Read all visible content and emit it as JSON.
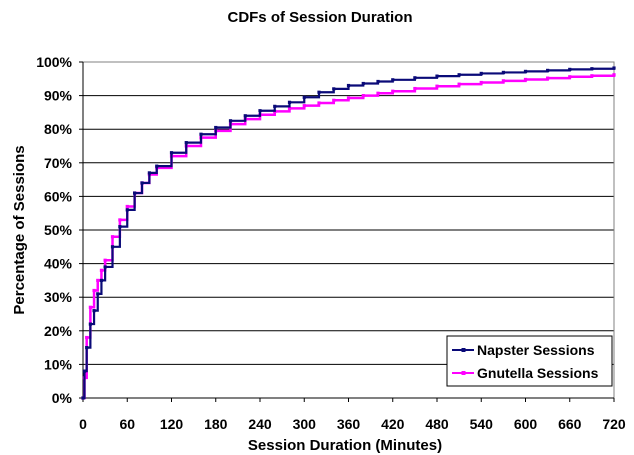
{
  "chart_data": {
    "type": "line",
    "title": "CDFs of Session Duration",
    "xlabel": "Session Duration (Minutes)",
    "ylabel": "Percentage of Sessions",
    "xlim": [
      0,
      720
    ],
    "ylim": [
      0,
      100
    ],
    "x_ticks": [
      "0",
      "60",
      "120",
      "180",
      "240",
      "300",
      "360",
      "420",
      "480",
      "540",
      "600",
      "660",
      "720"
    ],
    "y_ticks": [
      "0%",
      "10%",
      "20%",
      "30%",
      "40%",
      "50%",
      "60%",
      "70%",
      "80%",
      "90%",
      "100%"
    ],
    "grid": "horizontal",
    "legend_position": "bottom-right",
    "series": [
      {
        "name": "Napster Sessions",
        "color": "#0a0a78",
        "x": [
          0,
          2,
          5,
          10,
          15,
          20,
          25,
          30,
          40,
          50,
          60,
          70,
          80,
          90,
          100,
          120,
          140,
          160,
          180,
          200,
          220,
          240,
          260,
          280,
          300,
          320,
          340,
          360,
          380,
          400,
          420,
          450,
          480,
          510,
          540,
          570,
          600,
          630,
          660,
          690,
          720
        ],
        "y": [
          0,
          8,
          15,
          22,
          26,
          31,
          35,
          39,
          45,
          51,
          56,
          61,
          64,
          67,
          69,
          73,
          76,
          78.5,
          80.5,
          82.5,
          84,
          85.5,
          86.8,
          88,
          89.5,
          91,
          92,
          93,
          93.6,
          94.2,
          94.7,
          95.3,
          95.8,
          96.2,
          96.6,
          96.9,
          97.2,
          97.5,
          97.8,
          98,
          98.2
        ]
      },
      {
        "name": "Gnutella Sessions",
        "color": "#ff00ff",
        "x": [
          0,
          2,
          5,
          10,
          15,
          20,
          25,
          30,
          40,
          50,
          60,
          70,
          80,
          90,
          100,
          120,
          140,
          160,
          180,
          200,
          220,
          240,
          260,
          280,
          300,
          320,
          340,
          360,
          380,
          400,
          420,
          450,
          480,
          510,
          540,
          570,
          600,
          630,
          660,
          690,
          720
        ],
        "y": [
          0,
          6,
          18,
          27,
          32,
          35,
          38,
          41,
          48,
          53,
          57,
          61,
          64,
          66.5,
          68.5,
          72,
          75,
          77.5,
          79.5,
          81.5,
          83,
          84.3,
          85.3,
          86.2,
          87,
          87.8,
          88.6,
          89.3,
          90,
          90.7,
          91.3,
          92.1,
          92.8,
          93.4,
          93.9,
          94.4,
          94.8,
          95.2,
          95.6,
          95.9,
          96.2
        ]
      }
    ]
  }
}
